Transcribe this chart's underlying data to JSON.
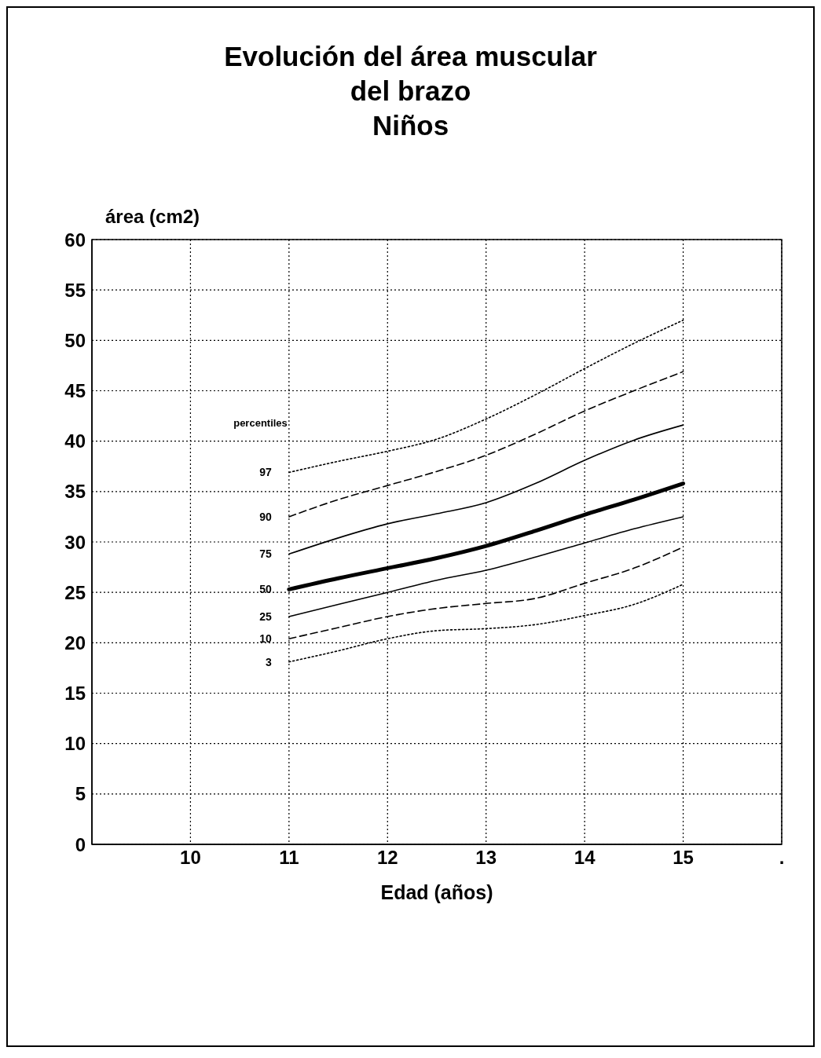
{
  "chart_data": {
    "type": "line",
    "title": "Evolución del área muscular\ndel brazo",
    "subtitle": "Niños",
    "xlabel": "Edad (años)",
    "ylabel": "área (cm2)",
    "legend_title": "percentiles",
    "x": [
      11,
      11.5,
      12,
      12.5,
      13,
      13.5,
      14,
      14.5,
      15
    ],
    "xlim": [
      9,
      16
    ],
    "xticks": [
      10,
      11,
      12,
      13,
      14,
      15,
      {
        "value": 16,
        "label": "."
      }
    ],
    "ylim": [
      0,
      60
    ],
    "yticks": [
      0,
      5,
      10,
      15,
      20,
      25,
      30,
      35,
      40,
      45,
      50,
      55,
      60
    ],
    "grid": true,
    "marker": "none",
    "series": [
      {
        "name": "97",
        "color": "#000000",
        "line_style": "dotted",
        "values": [
          36.9,
          38.0,
          39.0,
          40.2,
          42.2,
          44.6,
          47.2,
          49.7,
          52.0
        ]
      },
      {
        "name": "90",
        "color": "#000000",
        "line_style": "dashed",
        "values": [
          32.5,
          34.2,
          35.6,
          37.0,
          38.6,
          40.7,
          43.0,
          45.0,
          46.9
        ]
      },
      {
        "name": "75",
        "color": "#000000",
        "line_style": "solid",
        "values": [
          28.8,
          30.4,
          31.8,
          32.8,
          33.9,
          35.8,
          38.1,
          40.1,
          41.6
        ]
      },
      {
        "name": "50",
        "color": "#000000",
        "line_style": "solid",
        "values": [
          25.3,
          26.4,
          27.4,
          28.4,
          29.6,
          31.1,
          32.7,
          34.2,
          35.8
        ]
      },
      {
        "name": "25",
        "color": "#000000",
        "line_style": "solid",
        "values": [
          22.6,
          23.8,
          25.0,
          26.2,
          27.2,
          28.5,
          29.9,
          31.3,
          32.5
        ]
      },
      {
        "name": "10",
        "color": "#000000",
        "line_style": "dashed",
        "values": [
          20.4,
          21.5,
          22.6,
          23.4,
          23.9,
          24.4,
          25.9,
          27.4,
          29.5
        ]
      },
      {
        "name": "3",
        "color": "#000000",
        "line_style": "dotted",
        "values": [
          18.1,
          19.2,
          20.4,
          21.2,
          21.4,
          21.8,
          22.7,
          23.8,
          25.8
        ]
      }
    ]
  }
}
